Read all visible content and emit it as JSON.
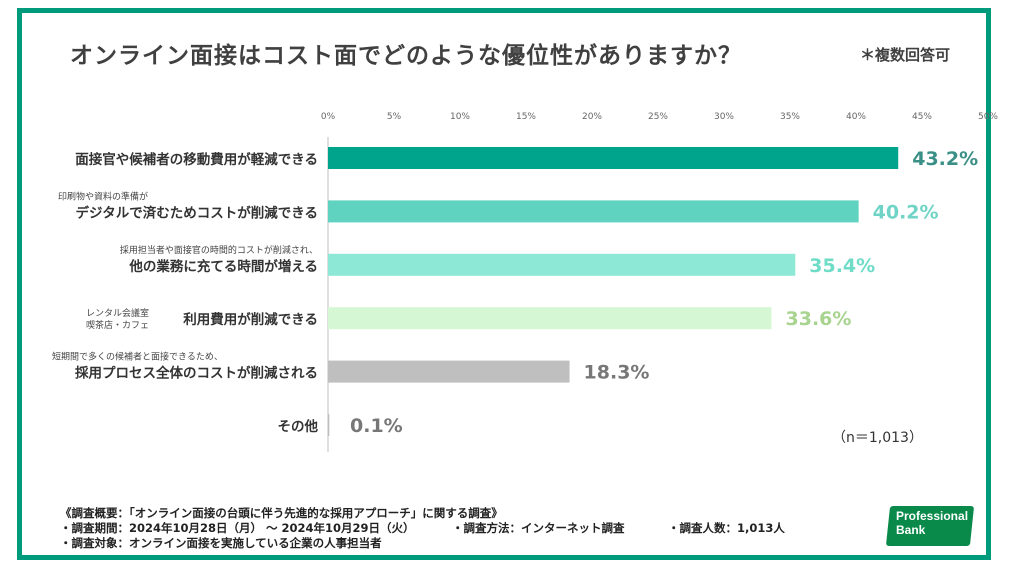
{
  "header": {
    "title": "オンライン面接はコスト面でどのような優位性がありますか？",
    "note": "＊複数回答可"
  },
  "chart_data": {
    "type": "bar",
    "orientation": "horizontal",
    "x_ticks": [
      "0%",
      "5%",
      "10%",
      "15%",
      "20%",
      "25%",
      "30%",
      "35%",
      "40%",
      "45%",
      "50%"
    ],
    "xlim": [
      0,
      50
    ],
    "categories": [
      {
        "main": "面接官や候補者の移動費用が軽減できる",
        "sub": ""
      },
      {
        "main": "デジタルで済むためコストが削減できる",
        "sub": "印刷物や資料の準備が"
      },
      {
        "main": "他の業務に充てる時間が増える",
        "sub": "採用担当者や面接官の時間的コストが削減され、"
      },
      {
        "main": "利用費用が削減できる",
        "side_line1": "レンタル会議室",
        "side_line2": "喫茶店・カフェ"
      },
      {
        "main": "採用プロセス全体のコストが削減される",
        "sub": "短期間で多くの候補者と面接できるため、"
      },
      {
        "main": "その他",
        "sub": ""
      }
    ],
    "values": [
      43.2,
      40.2,
      35.4,
      33.6,
      18.3,
      0.1
    ],
    "value_labels": [
      "43.2%",
      "40.2%",
      "35.4%",
      "33.6%",
      "18.3%",
      "0.1%"
    ],
    "bar_colors": [
      "#00a48c",
      "#5fd3bf",
      "#8ee8d6",
      "#d6f7d4",
      "#bfbfbf",
      "#bfbfbf"
    ],
    "label_colors": [
      "#3a8f87",
      "#6fd4c6",
      "#6fdcc8",
      "#a8d48f",
      "#777777",
      "#777777"
    ],
    "sample_size": "（n＝1,013）",
    "grid": false
  },
  "footer": {
    "line1": "《調査概要：「オンライン面接の台頭に伴う先進的な採用アプローチ」に関する調査》",
    "period": "・調査期間：2024年10月28日（月） 〜 2024年10月29日（火）",
    "method": "・調査方法：インターネット調査",
    "count": "・調査人数：1,013人",
    "target": "・調査対象：オンライン面接を実施している企業の人事担当者"
  },
  "logo": {
    "line1": "Professional",
    "line2": "Bank"
  }
}
